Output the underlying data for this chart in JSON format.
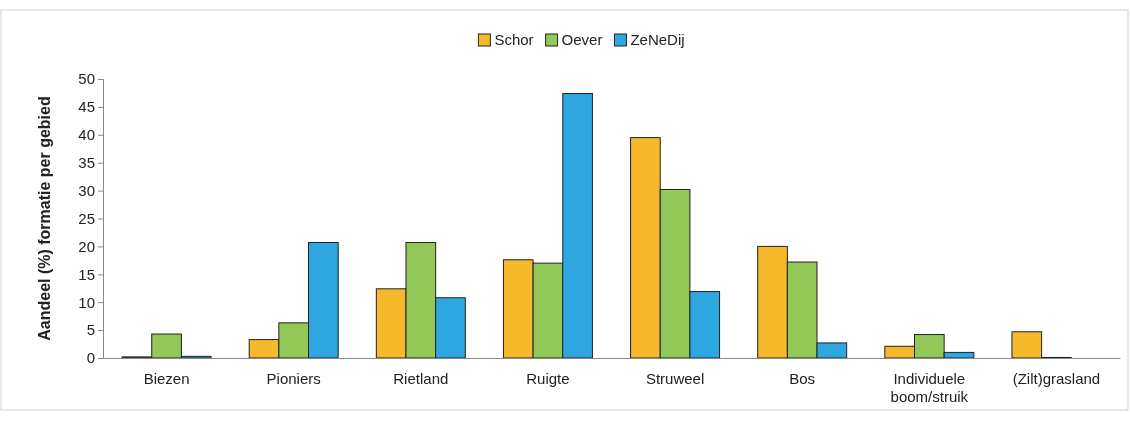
{
  "chart_data": {
    "type": "bar",
    "ylabel": "Aandeel (%) formatie per gebied",
    "categories": [
      "Biezen",
      "Pioniers",
      "Rietland",
      "Ruigte",
      "Struweel",
      "Bos",
      "Individuele boom/struik",
      "(Zilt)grasland"
    ],
    "series": [
      {
        "name": "Schor",
        "color": "#f6b92c",
        "values": [
          0.2,
          3.3,
          12.4,
          17.6,
          39.5,
          20.0,
          2.1,
          4.7
        ]
      },
      {
        "name": "Oever",
        "color": "#92c857",
        "values": [
          4.3,
          6.3,
          20.7,
          17.0,
          30.2,
          17.2,
          4.2,
          0.1
        ]
      },
      {
        "name": "ZeNeDij",
        "color": "#2ea7e0",
        "values": [
          0.3,
          20.7,
          10.8,
          47.4,
          11.9,
          2.7,
          1.0,
          0
        ]
      }
    ],
    "ylim": [
      0,
      50
    ],
    "yticks": [
      0,
      5,
      10,
      15,
      20,
      25,
      30,
      35,
      40,
      45,
      50
    ],
    "grid": false,
    "legend": "top"
  }
}
